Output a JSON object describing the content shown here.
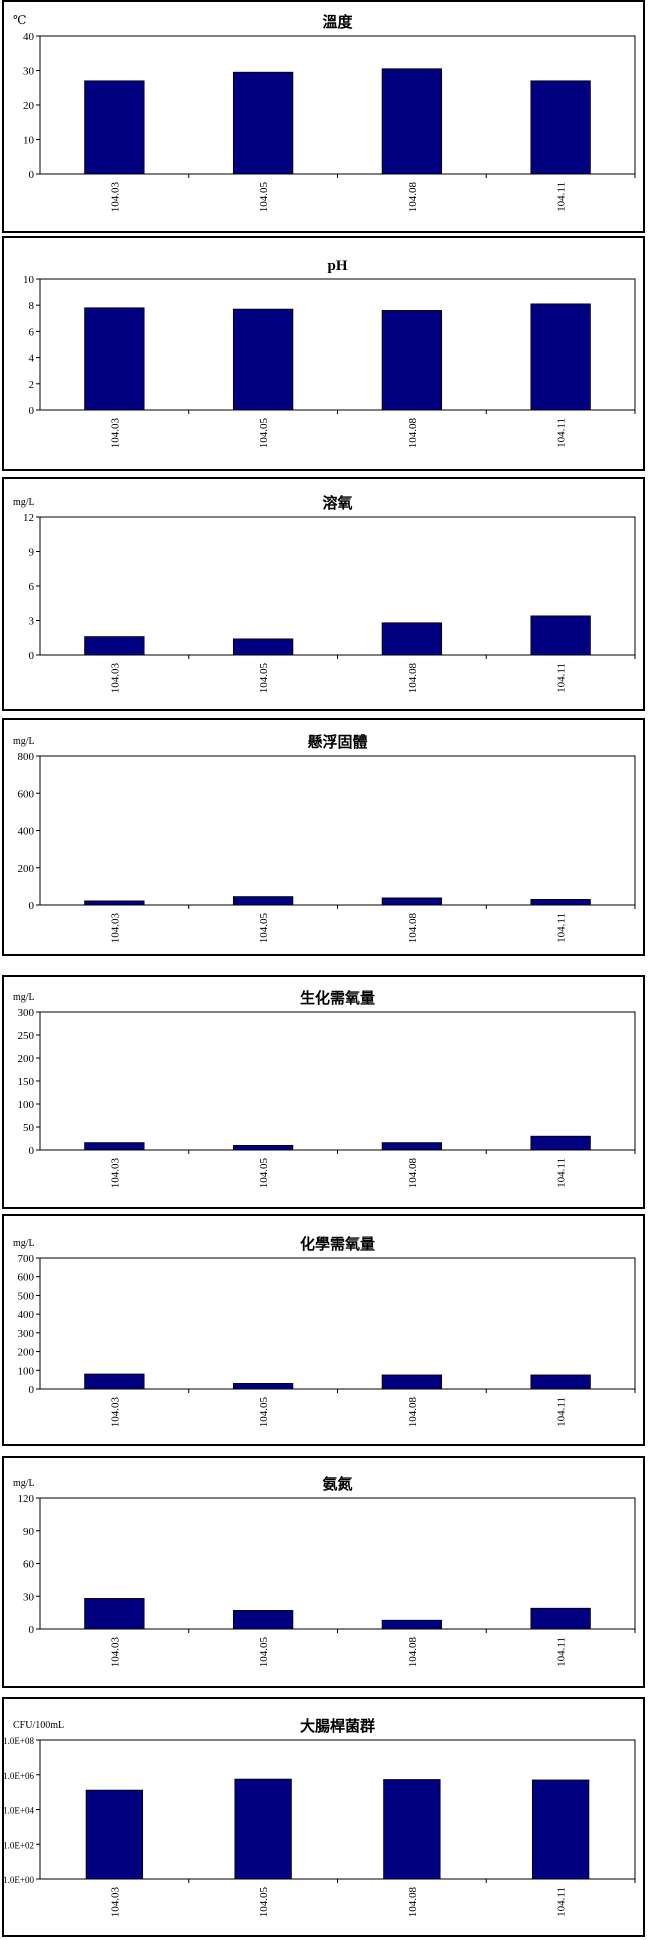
{
  "theme": {
    "bar_color": "#000080",
    "border_color": "#000000"
  },
  "chart_data": [
    {
      "type": "bar",
      "title": "溫度",
      "unit": "℃",
      "categories": [
        "104.03",
        "104.05",
        "104.08",
        "104.11"
      ],
      "values": [
        27,
        29.5,
        30.5,
        27
      ],
      "ylim": [
        0,
        40
      ],
      "ticks": [
        "0",
        "10",
        "20",
        "30",
        "40"
      ],
      "grid": false,
      "legend": null
    },
    {
      "type": "bar",
      "title": "pH",
      "unit": "",
      "categories": [
        "104.03",
        "104.05",
        "104.08",
        "104.11"
      ],
      "values": [
        7.8,
        7.7,
        7.6,
        8.1
      ],
      "ylim": [
        0,
        10
      ],
      "ticks": [
        "0",
        "2",
        "4",
        "6",
        "8",
        "10"
      ],
      "grid": false,
      "legend": null
    },
    {
      "type": "bar",
      "title": "溶氧",
      "unit": "mg/L",
      "categories": [
        "104.03",
        "104.05",
        "104.08",
        "104.11"
      ],
      "values": [
        1.6,
        1.4,
        2.8,
        3.4
      ],
      "ylim": [
        0,
        12
      ],
      "ticks": [
        "0",
        "3",
        "6",
        "9",
        "12"
      ],
      "grid": false,
      "legend": null
    },
    {
      "type": "bar",
      "title": "懸浮固體",
      "unit": "mg/L",
      "categories": [
        "104.03",
        "104.05",
        "104.08",
        "104.11"
      ],
      "values": [
        22,
        45,
        38,
        30
      ],
      "ylim": [
        0,
        800
      ],
      "ticks": [
        "0",
        "200",
        "400",
        "600",
        "800"
      ],
      "grid": false,
      "legend": null
    },
    {
      "type": "bar",
      "title": "生化需氧量",
      "unit": "mg/L",
      "categories": [
        "104.03",
        "104.05",
        "104.08",
        "104.11"
      ],
      "values": [
        16,
        10,
        16,
        30
      ],
      "ylim": [
        0,
        300
      ],
      "ticks": [
        "0",
        "50",
        "100",
        "150",
        "200",
        "250",
        "300"
      ],
      "grid": false,
      "legend": null
    },
    {
      "type": "bar",
      "title": "化學需氧量",
      "unit": "mg/L",
      "categories": [
        "104.03",
        "104.05",
        "104.08",
        "104.11"
      ],
      "values": [
        80,
        30,
        75,
        75
      ],
      "ylim": [
        0,
        700
      ],
      "ticks": [
        "0",
        "100",
        "200",
        "300",
        "400",
        "500",
        "600",
        "700"
      ],
      "grid": false,
      "legend": null
    },
    {
      "type": "bar",
      "title": "氨氮",
      "unit": "mg/L",
      "categories": [
        "104.03",
        "104.05",
        "104.08",
        "104.11"
      ],
      "values": [
        28,
        17,
        8,
        19
      ],
      "ylim": [
        0,
        120
      ],
      "ticks": [
        "0",
        "30",
        "60",
        "90",
        "120"
      ],
      "grid": false,
      "legend": null
    },
    {
      "type": "bar",
      "title": "大腸桿菌群",
      "unit": "CFU/100mL",
      "categories": [
        "104.03",
        "104.05",
        "104.08",
        "104.11"
      ],
      "values": [
        130000,
        560000,
        530000,
        500000
      ],
      "scale": "log",
      "ylim": [
        1,
        100000000
      ],
      "ticks": [
        "1.0E+00",
        "1.0E+02",
        "1.0E+04",
        "1.0E+06",
        "1.0E+08"
      ],
      "grid": false,
      "legend": null
    }
  ]
}
